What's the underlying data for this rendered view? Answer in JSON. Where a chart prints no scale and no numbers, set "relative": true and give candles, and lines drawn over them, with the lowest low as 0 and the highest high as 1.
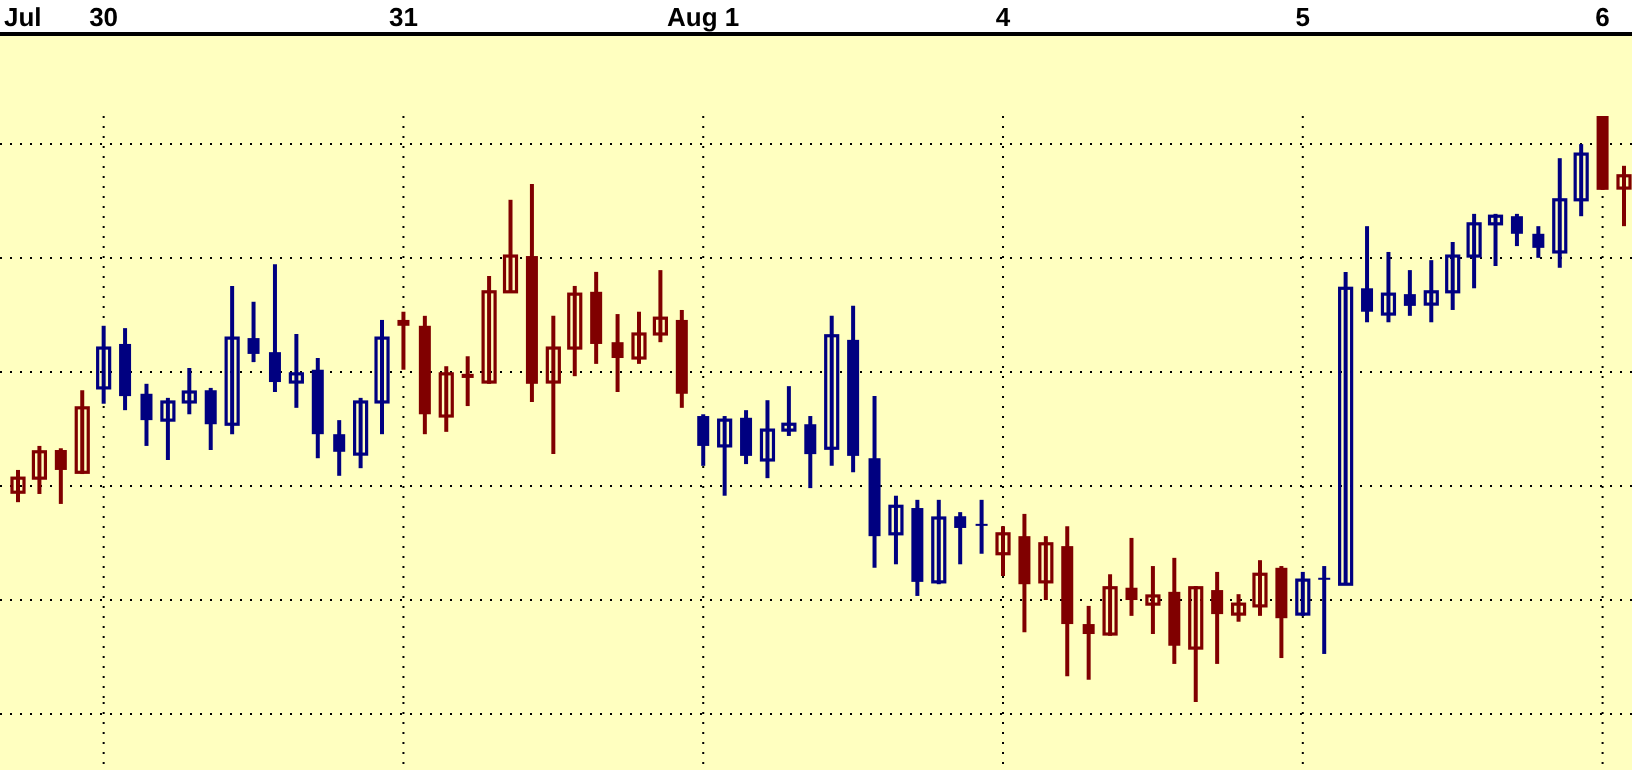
{
  "chart_data": {
    "type": "candlestick",
    "relative": true,
    "grid": true,
    "categories": [
      "Jul",
      null,
      null,
      null,
      "30",
      null,
      null,
      null,
      null,
      null,
      null,
      null,
      null,
      null,
      null,
      null,
      null,
      null,
      "31",
      null,
      null,
      null,
      null,
      null,
      null,
      null,
      null,
      null,
      null,
      null,
      null,
      null,
      "Aug 1",
      null,
      null,
      null,
      null,
      null,
      null,
      null,
      null,
      null,
      null,
      null,
      null,
      null,
      "4",
      null,
      null,
      null,
      null,
      null,
      null,
      null,
      null,
      null,
      null,
      null,
      null,
      null,
      "5",
      null,
      null,
      null,
      null,
      null,
      null,
      null,
      null,
      null,
      null,
      null,
      null,
      null,
      "6",
      null
    ],
    "ohlc": [
      [
        0.358,
        0.396,
        0.341,
        0.382
      ],
      [
        0.382,
        0.437,
        0.355,
        0.427
      ],
      [
        0.43,
        0.433,
        0.338,
        0.396
      ],
      [
        0.392,
        0.532,
        0.389,
        0.502
      ],
      [
        0.536,
        0.642,
        0.509,
        0.604
      ],
      [
        0.611,
        0.638,
        0.498,
        0.522
      ],
      [
        0.526,
        0.543,
        0.437,
        0.481
      ],
      [
        0.481,
        0.519,
        0.413,
        0.512
      ],
      [
        0.512,
        0.57,
        0.491,
        0.529
      ],
      [
        0.532,
        0.536,
        0.43,
        0.474
      ],
      [
        0.474,
        0.71,
        0.457,
        0.621
      ],
      [
        0.621,
        0.683,
        0.58,
        0.594
      ],
      [
        0.597,
        0.747,
        0.529,
        0.546
      ],
      [
        0.546,
        0.628,
        0.502,
        0.56
      ],
      [
        0.567,
        0.587,
        0.416,
        0.457
      ],
      [
        0.457,
        0.481,
        0.386,
        0.427
      ],
      [
        0.423,
        0.519,
        0.399,
        0.512
      ],
      [
        0.512,
        0.652,
        0.457,
        0.621
      ],
      [
        0.652,
        0.666,
        0.567,
        0.642
      ],
      [
        0.642,
        0.659,
        0.457,
        0.491
      ],
      [
        0.488,
        0.573,
        0.461,
        0.56
      ],
      [
        0.56,
        0.59,
        0.505,
        0.553
      ],
      [
        0.546,
        0.727,
        0.543,
        0.7
      ],
      [
        0.7,
        0.857,
        0.7,
        0.761
      ],
      [
        0.761,
        0.884,
        0.512,
        0.543
      ],
      [
        0.546,
        0.659,
        0.423,
        0.604
      ],
      [
        0.604,
        0.71,
        0.556,
        0.696
      ],
      [
        0.7,
        0.734,
        0.577,
        0.611
      ],
      [
        0.614,
        0.662,
        0.529,
        0.587
      ],
      [
        0.587,
        0.666,
        0.577,
        0.628
      ],
      [
        0.628,
        0.737,
        0.614,
        0.655
      ],
      [
        0.652,
        0.669,
        0.502,
        0.526
      ],
      [
        0.488,
        0.491,
        0.403,
        0.437
      ],
      [
        0.437,
        0.488,
        0.352,
        0.481
      ],
      [
        0.485,
        0.498,
        0.406,
        0.42
      ],
      [
        0.413,
        0.515,
        0.382,
        0.464
      ],
      [
        0.464,
        0.539,
        0.454,
        0.474
      ],
      [
        0.474,
        0.488,
        0.365,
        0.423
      ],
      [
        0.433,
        0.659,
        0.403,
        0.625
      ],
      [
        0.618,
        0.676,
        0.392,
        0.42
      ],
      [
        0.416,
        0.522,
        0.229,
        0.283
      ],
      [
        0.287,
        0.352,
        0.235,
        0.334
      ],
      [
        0.331,
        0.345,
        0.181,
        0.205
      ],
      [
        0.205,
        0.345,
        0.201,
        0.314
      ],
      [
        0.317,
        0.324,
        0.235,
        0.297
      ],
      [
        0.304,
        0.345,
        0.253,
        0.304
      ],
      [
        0.253,
        0.3,
        0.215,
        0.287
      ],
      [
        0.283,
        0.321,
        0.119,
        0.201
      ],
      [
        0.205,
        0.283,
        0.174,
        0.27
      ],
      [
        0.266,
        0.3,
        0.044,
        0.133
      ],
      [
        0.133,
        0.164,
        0.038,
        0.116
      ],
      [
        0.116,
        0.218,
        0.113,
        0.195
      ],
      [
        0.195,
        0.28,
        0.147,
        0.174
      ],
      [
        0.167,
        0.232,
        0.116,
        0.181
      ],
      [
        0.188,
        0.246,
        0.065,
        0.096
      ],
      [
        0.092,
        0.198,
        0,
        0.195
      ],
      [
        0.191,
        0.222,
        0.065,
        0.15
      ],
      [
        0.15,
        0.184,
        0.137,
        0.167
      ],
      [
        0.164,
        0.242,
        0.147,
        0.218
      ],
      [
        0.229,
        0.232,
        0.075,
        0.143
      ],
      [
        0.15,
        0.222,
        0.147,
        0.208
      ],
      [
        0.212,
        0.232,
        0.082,
        0.212
      ],
      [
        0.201,
        0.734,
        0.201,
        0.706
      ],
      [
        0.706,
        0.812,
        0.648,
        0.666
      ],
      [
        0.662,
        0.768,
        0.648,
        0.696
      ],
      [
        0.696,
        0.737,
        0.659,
        0.676
      ],
      [
        0.679,
        0.754,
        0.648,
        0.7
      ],
      [
        0.7,
        0.785,
        0.669,
        0.761
      ],
      [
        0.761,
        0.833,
        0.706,
        0.816
      ],
      [
        0.816,
        0.833,
        0.744,
        0.829
      ],
      [
        0.829,
        0.833,
        0.778,
        0.799
      ],
      [
        0.799,
        0.812,
        0.758,
        0.775
      ],
      [
        0.768,
        0.928,
        0.741,
        0.857
      ],
      [
        0.857,
        0.952,
        0.829,
        0.935
      ],
      [
        1,
        1,
        0.874,
        0.874
      ],
      [
        0.877,
        0.915,
        0.812,
        0.898
      ]
    ],
    "colors": [
      "#800000",
      "#800000",
      "#800000",
      "#800000",
      "#000080",
      "#000080",
      "#000080",
      "#000080",
      "#000080",
      "#000080",
      "#000080",
      "#000080",
      "#000080",
      "#000080",
      "#000080",
      "#000080",
      "#000080",
      "#000080",
      "#800000",
      "#800000",
      "#800000",
      "#800000",
      "#800000",
      "#800000",
      "#800000",
      "#800000",
      "#800000",
      "#800000",
      "#800000",
      "#800000",
      "#800000",
      "#800000",
      "#000080",
      "#000080",
      "#000080",
      "#000080",
      "#000080",
      "#000080",
      "#000080",
      "#000080",
      "#000080",
      "#000080",
      "#000080",
      "#000080",
      "#000080",
      "#000080",
      "#800000",
      "#800000",
      "#800000",
      "#800000",
      "#800000",
      "#800000",
      "#800000",
      "#800000",
      "#800000",
      "#800000",
      "#800000",
      "#800000",
      "#800000",
      "#800000",
      "#000080",
      "#000080",
      "#000080",
      "#000080",
      "#000080",
      "#000080",
      "#000080",
      "#000080",
      "#000080",
      "#000080",
      "#000080",
      "#000080",
      "#000080",
      "#000080",
      "#800000",
      "#800000"
    ]
  }
}
